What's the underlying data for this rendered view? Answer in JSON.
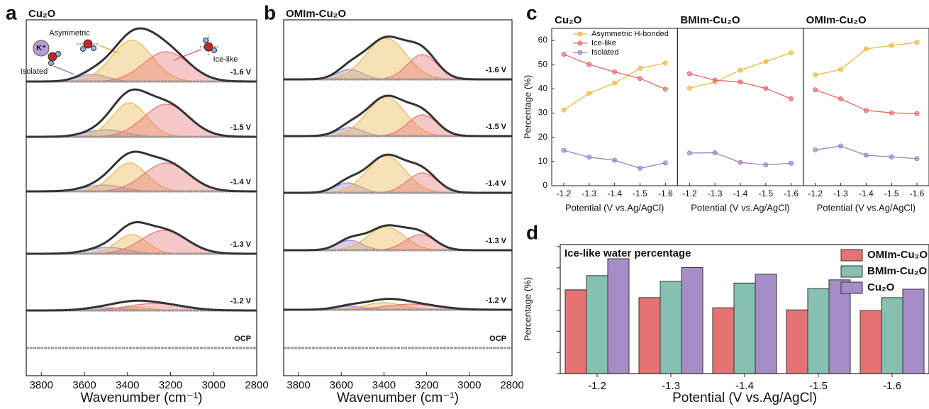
{
  "chart_data": [
    {
      "type": "spectra",
      "panel": "a",
      "title": "Cu₂O",
      "xlabel": "Wavenumber (cm⁻¹)",
      "xlim": [
        3870,
        2800
      ],
      "xticks": [
        3800,
        3600,
        3400,
        3200,
        3000,
        2800
      ],
      "component_colors": [
        "#9b86c9",
        "#eab64a",
        "#e57373"
      ],
      "annotations": [
        "Asymmetric",
        "Ice-like",
        "Isolated",
        "K⁺"
      ],
      "spectra": [
        {
          "label": "-1.6 V",
          "peaks": [
            {
              "center": 3560,
              "height": 10,
              "width": 70
            },
            {
              "center": 3380,
              "height": 58,
              "width": 95
            },
            {
              "center": 3220,
              "height": 42,
              "width": 105
            }
          ]
        },
        {
          "label": "-1.5 V",
          "peaks": [
            {
              "center": 3500,
              "height": 10,
              "width": 90
            },
            {
              "center": 3390,
              "height": 48,
              "width": 80
            },
            {
              "center": 3220,
              "height": 46,
              "width": 105
            }
          ]
        },
        {
          "label": "-1.4 V",
          "peaks": [
            {
              "center": 3510,
              "height": 9,
              "width": 90
            },
            {
              "center": 3390,
              "height": 40,
              "width": 80
            },
            {
              "center": 3220,
              "height": 40,
              "width": 105
            }
          ]
        },
        {
          "label": "-1.3 V",
          "peaks": [
            {
              "center": 3490,
              "height": 9,
              "width": 90
            },
            {
              "center": 3380,
              "height": 27,
              "width": 70
            },
            {
              "center": 3230,
              "height": 33,
              "width": 105
            }
          ]
        },
        {
          "label": "-1.2 V",
          "peaks": [
            {
              "center": 3500,
              "height": 4,
              "width": 90
            },
            {
              "center": 3380,
              "height": 5,
              "width": 80
            },
            {
              "center": 3270,
              "height": 10,
              "width": 125
            }
          ]
        },
        {
          "label": "OCP",
          "peaks": []
        }
      ]
    },
    {
      "type": "spectra",
      "panel": "b",
      "title": "OMIm-Cu₂O",
      "xlabel": "Wavenumber (cm⁻¹)",
      "xlim": [
        3870,
        2800
      ],
      "xticks": [
        3800,
        3600,
        3400,
        3200,
        3000,
        2800
      ],
      "component_colors": [
        "#9b86c9",
        "#eab64a",
        "#e57373"
      ],
      "spectra": [
        {
          "label": "-1.6 V",
          "peaks": [
            {
              "center": 3560,
              "height": 14,
              "width": 60
            },
            {
              "center": 3390,
              "height": 58,
              "width": 95
            },
            {
              "center": 3220,
              "height": 35,
              "width": 70
            }
          ]
        },
        {
          "label": "-1.5 V",
          "peaks": [
            {
              "center": 3560,
              "height": 12,
              "width": 60
            },
            {
              "center": 3390,
              "height": 55,
              "width": 90
            },
            {
              "center": 3220,
              "height": 30,
              "width": 70
            }
          ]
        },
        {
          "label": "-1.4 V",
          "peaks": [
            {
              "center": 3570,
              "height": 14,
              "width": 60
            },
            {
              "center": 3390,
              "height": 52,
              "width": 90
            },
            {
              "center": 3220,
              "height": 28,
              "width": 70
            }
          ]
        },
        {
          "label": "-1.3 V",
          "peaks": [
            {
              "center": 3560,
              "height": 14,
              "width": 60
            },
            {
              "center": 3390,
              "height": 33,
              "width": 85
            },
            {
              "center": 3230,
              "height": 22,
              "width": 70
            }
          ]
        },
        {
          "label": "-1.2 V",
          "peaks": [
            {
              "center": 3560,
              "height": 5,
              "width": 70
            },
            {
              "center": 3400,
              "height": 10,
              "width": 90
            },
            {
              "center": 3270,
              "height": 8,
              "width": 125
            }
          ]
        },
        {
          "label": "OCP",
          "peaks": []
        }
      ]
    },
    {
      "type": "line",
      "panel": "c",
      "ylabel": "Percentage (%)",
      "xlabel": "Potential (V vs.Ag/AgCl)",
      "categories": [
        "-1.2",
        "-1.3",
        "-1.4",
        "-1.5",
        "-1.6"
      ],
      "ylim": [
        0,
        65
      ],
      "yticks": [
        0,
        10,
        20,
        30,
        40,
        50,
        60
      ],
      "legend": [
        {
          "name": "Asymmetric H-bonded",
          "color": "#f0b63f"
        },
        {
          "name": "Ice-like",
          "color": "#e8676a"
        },
        {
          "name": "Isolated",
          "color": "#9b7fc8"
        }
      ],
      "panels": [
        {
          "title": "Cu₂O",
          "series": [
            {
              "values": [
                31.3,
                38.2,
                42.4,
                48.5,
                50.7
              ]
            },
            {
              "values": [
                54.3,
                50.1,
                47.0,
                44.3,
                39.9
              ]
            },
            {
              "values": [
                14.6,
                11.8,
                10.5,
                7.2,
                9.4
              ]
            }
          ]
        },
        {
          "title": "BMIm-Cu₂O",
          "series": [
            {
              "values": [
                40.3,
                42.8,
                47.7,
                51.3,
                54.9
              ]
            },
            {
              "values": [
                46.3,
                43.6,
                42.8,
                40.2,
                35.9
              ]
            },
            {
              "values": [
                13.5,
                13.6,
                9.6,
                8.6,
                9.3
              ]
            }
          ]
        },
        {
          "title": "OMIm-Cu₂O",
          "series": [
            {
              "values": [
                45.7,
                48.0,
                56.5,
                57.9,
                59.2
              ]
            },
            {
              "values": [
                39.6,
                35.9,
                31.1,
                30.1,
                29.8
              ]
            },
            {
              "values": [
                14.8,
                16.4,
                12.6,
                11.9,
                11.2
              ]
            }
          ]
        }
      ]
    },
    {
      "type": "bar",
      "panel": "d",
      "title": "Ice-like water percentage",
      "ylabel": "Percentage (%)",
      "xlabel": "Potential (V vs.Ag/AgCl)",
      "categories": [
        "-1.2",
        "-1.3",
        "-1.4",
        "-1.5",
        "-1.6"
      ],
      "ylim": [
        0,
        61
      ],
      "yticks": [
        0,
        10,
        20,
        30,
        40,
        50,
        60
      ],
      "series": [
        {
          "name": "OMIm-Cu₂O",
          "color": "#e57373",
          "values": [
            39.6,
            35.9,
            31.1,
            30.1,
            29.8
          ]
        },
        {
          "name": "BMIm-Cu₂O",
          "color": "#86c0b2",
          "values": [
            46.3,
            43.6,
            42.8,
            40.2,
            35.9
          ]
        },
        {
          "name": "Cu₂O",
          "color": "#a58dc8",
          "values": [
            54.3,
            50.1,
            47.0,
            44.3,
            39.9
          ]
        }
      ]
    }
  ]
}
